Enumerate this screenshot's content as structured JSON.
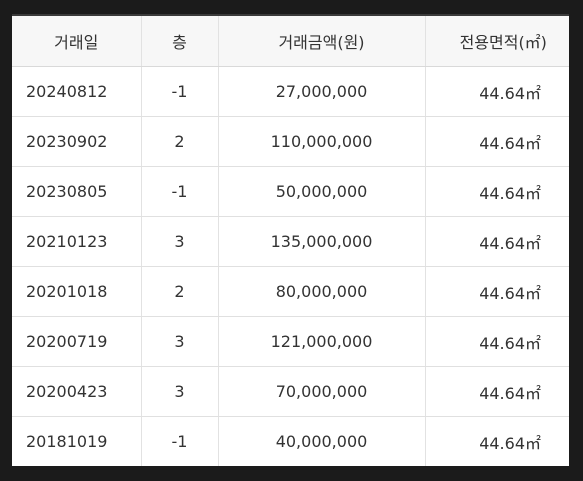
{
  "table": {
    "headers": {
      "date": "거래일",
      "floor": "층",
      "price": "거래금액(원)",
      "area": "전용면적(㎡)"
    },
    "rows": [
      {
        "date": "20240812",
        "floor": "-1",
        "price": "27,000,000",
        "area": "44.64㎡"
      },
      {
        "date": "20230902",
        "floor": "2",
        "price": "110,000,000",
        "area": "44.64㎡"
      },
      {
        "date": "20230805",
        "floor": "-1",
        "price": "50,000,000",
        "area": "44.64㎡"
      },
      {
        "date": "20210123",
        "floor": "3",
        "price": "135,000,000",
        "area": "44.64㎡"
      },
      {
        "date": "20201018",
        "floor": "2",
        "price": "80,000,000",
        "area": "44.64㎡"
      },
      {
        "date": "20200719",
        "floor": "3",
        "price": "121,000,000",
        "area": "44.64㎡"
      },
      {
        "date": "20200423",
        "floor": "3",
        "price": "70,000,000",
        "area": "44.64㎡"
      },
      {
        "date": "20181019",
        "floor": "-1",
        "price": "40,000,000",
        "area": "44.64㎡"
      }
    ]
  }
}
